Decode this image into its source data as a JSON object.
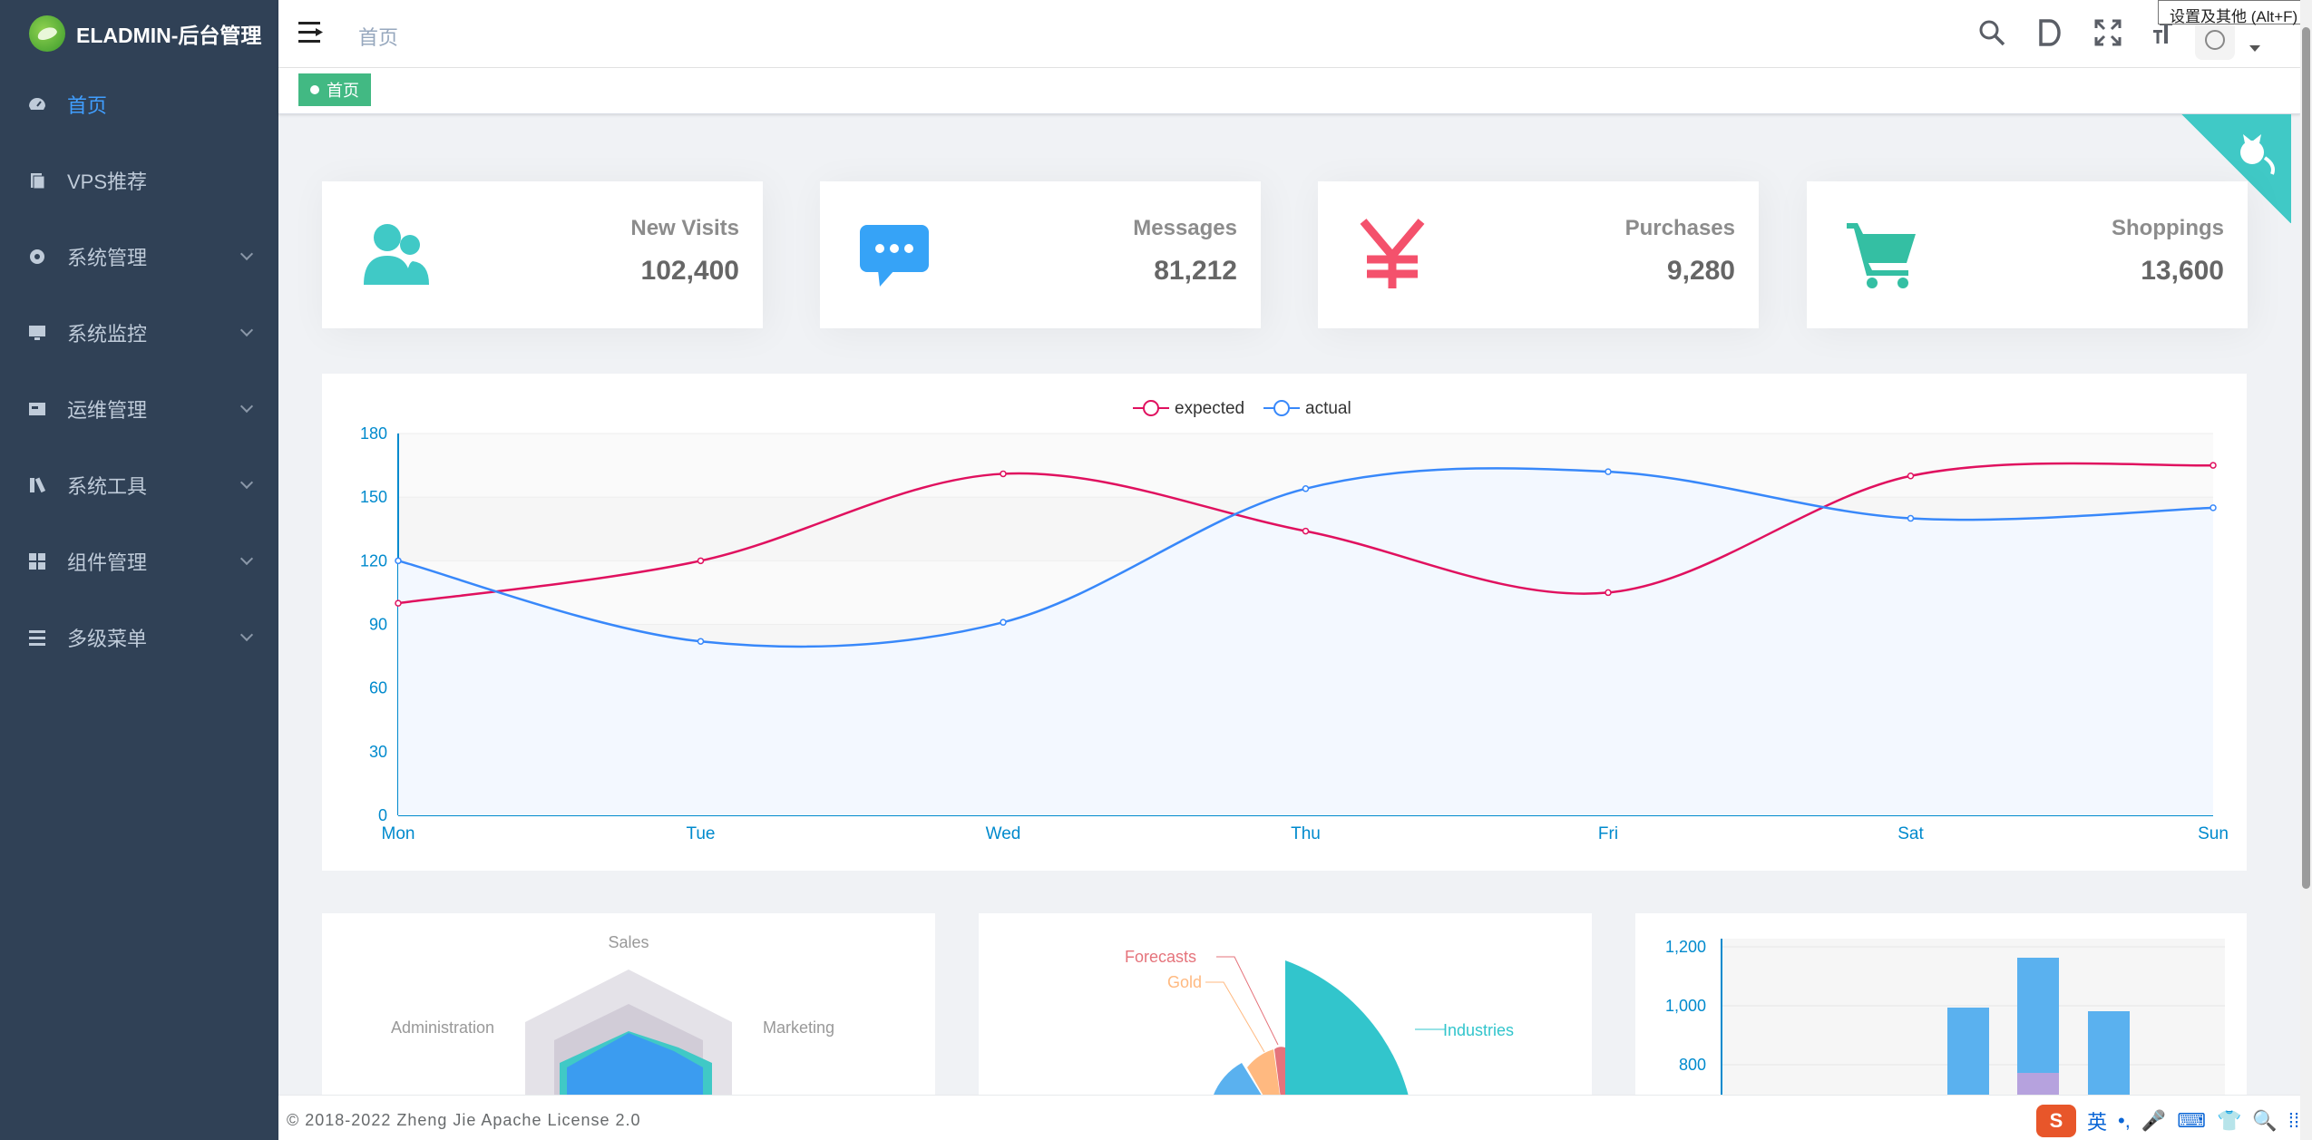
{
  "app": {
    "title": "ELADMIN-后台管理",
    "footer": "© 2018-2022 Zheng Jie Apache License 2.0"
  },
  "sidebar": {
    "items": [
      {
        "label": "首页",
        "icon": "dashboard-icon",
        "active": true,
        "hasChildren": false
      },
      {
        "label": "VPS推荐",
        "icon": "server-icon",
        "active": false,
        "hasChildren": false
      },
      {
        "label": "系统管理",
        "icon": "gear-icon",
        "active": false,
        "hasChildren": true
      },
      {
        "label": "系统监控",
        "icon": "monitor-icon",
        "active": false,
        "hasChildren": true
      },
      {
        "label": "运维管理",
        "icon": "ops-icon",
        "active": false,
        "hasChildren": true
      },
      {
        "label": "系统工具",
        "icon": "tools-icon",
        "active": false,
        "hasChildren": true
      },
      {
        "label": "组件管理",
        "icon": "grid-icon",
        "active": false,
        "hasChildren": true
      },
      {
        "label": "多级菜单",
        "icon": "list-icon",
        "active": false,
        "hasChildren": true
      }
    ]
  },
  "navbar": {
    "breadcrumb": "首页",
    "tooltip": "设置及其他 (Alt+F)"
  },
  "tags": [
    {
      "label": "首页",
      "active": true
    }
  ],
  "cards": [
    {
      "label": "New Visits",
      "value": "102,400",
      "icon": "peoples-icon",
      "color": "#40c9c6"
    },
    {
      "label": "Messages",
      "value": "81,212",
      "icon": "message-icon",
      "color": "#36a3f7"
    },
    {
      "label": "Purchases",
      "value": "9,280",
      "icon": "money-icon",
      "color": "#f4516c"
    },
    {
      "label": "Shoppings",
      "value": "13,600",
      "icon": "shopping-icon",
      "color": "#34bfa3"
    }
  ],
  "chart_data": [
    {
      "type": "line",
      "x": [
        "Mon",
        "Tue",
        "Wed",
        "Thu",
        "Fri",
        "Sat",
        "Sun"
      ],
      "series": [
        {
          "name": "expected",
          "values": [
            100,
            120,
            161,
            134,
            105,
            160,
            165
          ],
          "color": "#e0115f"
        },
        {
          "name": "actual",
          "values": [
            120,
            82,
            91,
            154,
            162,
            140,
            145
          ],
          "color": "#3888fa"
        }
      ],
      "ylim": [
        0,
        180
      ],
      "yticks": [
        0,
        30,
        60,
        90,
        120,
        150,
        180
      ],
      "legend": "top-center"
    },
    {
      "type": "radar",
      "indicators": [
        "Sales",
        "Administration",
        "Marketing"
      ]
    },
    {
      "type": "pie",
      "labels": [
        "Industries",
        "Gold",
        "Forecasts"
      ],
      "colors": [
        "#32c5cc",
        "#ffb980",
        "#e5737b"
      ]
    },
    {
      "type": "bar",
      "yticks": [
        "800",
        "1,000",
        "1,200"
      ]
    }
  ],
  "ime": {
    "lang": "英",
    "punct": "•,"
  }
}
